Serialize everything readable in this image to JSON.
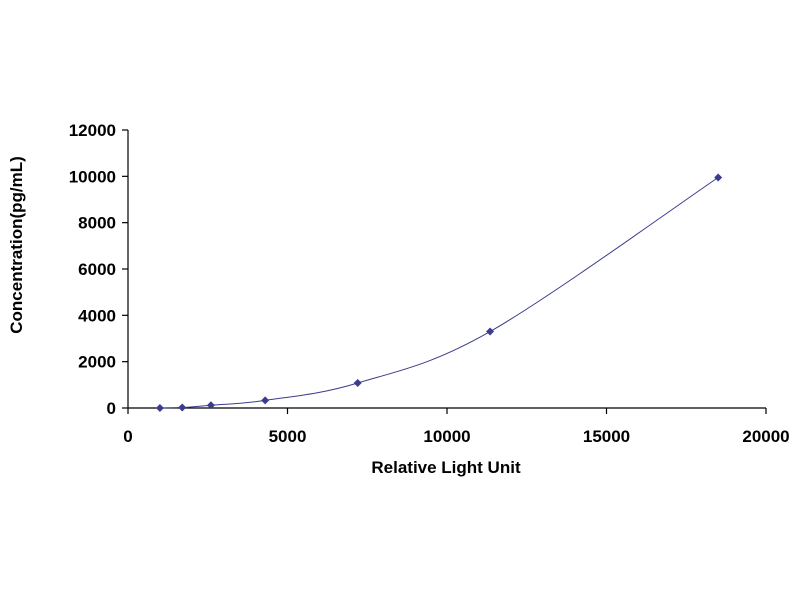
{
  "chart_data": {
    "type": "scatter",
    "title": "",
    "xlabel": "Relative Light Unit",
    "ylabel": "Concentration(pg/mL)",
    "xlim": [
      0,
      20000
    ],
    "ylim": [
      0,
      12000
    ],
    "xticks": [
      "0",
      "5000",
      "10000",
      "15000",
      "20000"
    ],
    "yticks": [
      "0",
      "2000",
      "4000",
      "6000",
      "8000",
      "10000",
      "12000"
    ],
    "grid": false,
    "legend": "none",
    "series": [
      {
        "points": [
          [
            1000,
            0
          ],
          [
            1700,
            20
          ],
          [
            2600,
            120
          ],
          [
            4300,
            330
          ],
          [
            7200,
            1080
          ],
          [
            11350,
            3300
          ],
          [
            18500,
            9950
          ]
        ],
        "marker": "diamond",
        "line": "smooth",
        "color": "#3c3c8c"
      }
    ]
  }
}
